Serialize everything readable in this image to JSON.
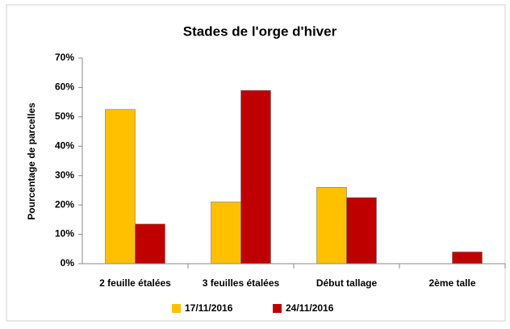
{
  "chart_data": {
    "type": "bar",
    "title": "Stades de l'orge d'hiver",
    "y_label": "Pourcentage de parcelles",
    "categories": [
      "2 feuille étalées",
      "3 feuilles étalées",
      "Début tallage",
      "2ème talle"
    ],
    "series": [
      {
        "name": "17/11/2016",
        "color": "#ffc000",
        "values": [
          52.5,
          21,
          26,
          0
        ]
      },
      {
        "name": "24/11/2016",
        "color": "#c00000",
        "values": [
          13.5,
          59,
          22.5,
          4
        ]
      }
    ],
    "ylim": [
      0,
      70
    ],
    "yticks": [
      {
        "value": 0,
        "label": "0%"
      },
      {
        "value": 10,
        "label": "10%"
      },
      {
        "value": 20,
        "label": "20%"
      },
      {
        "value": 30,
        "label": "30%"
      },
      {
        "value": 40,
        "label": "40%"
      },
      {
        "value": 50,
        "label": "50%"
      },
      {
        "value": 60,
        "label": "60%"
      },
      {
        "value": 70,
        "label": "70%"
      }
    ],
    "grid": false
  }
}
